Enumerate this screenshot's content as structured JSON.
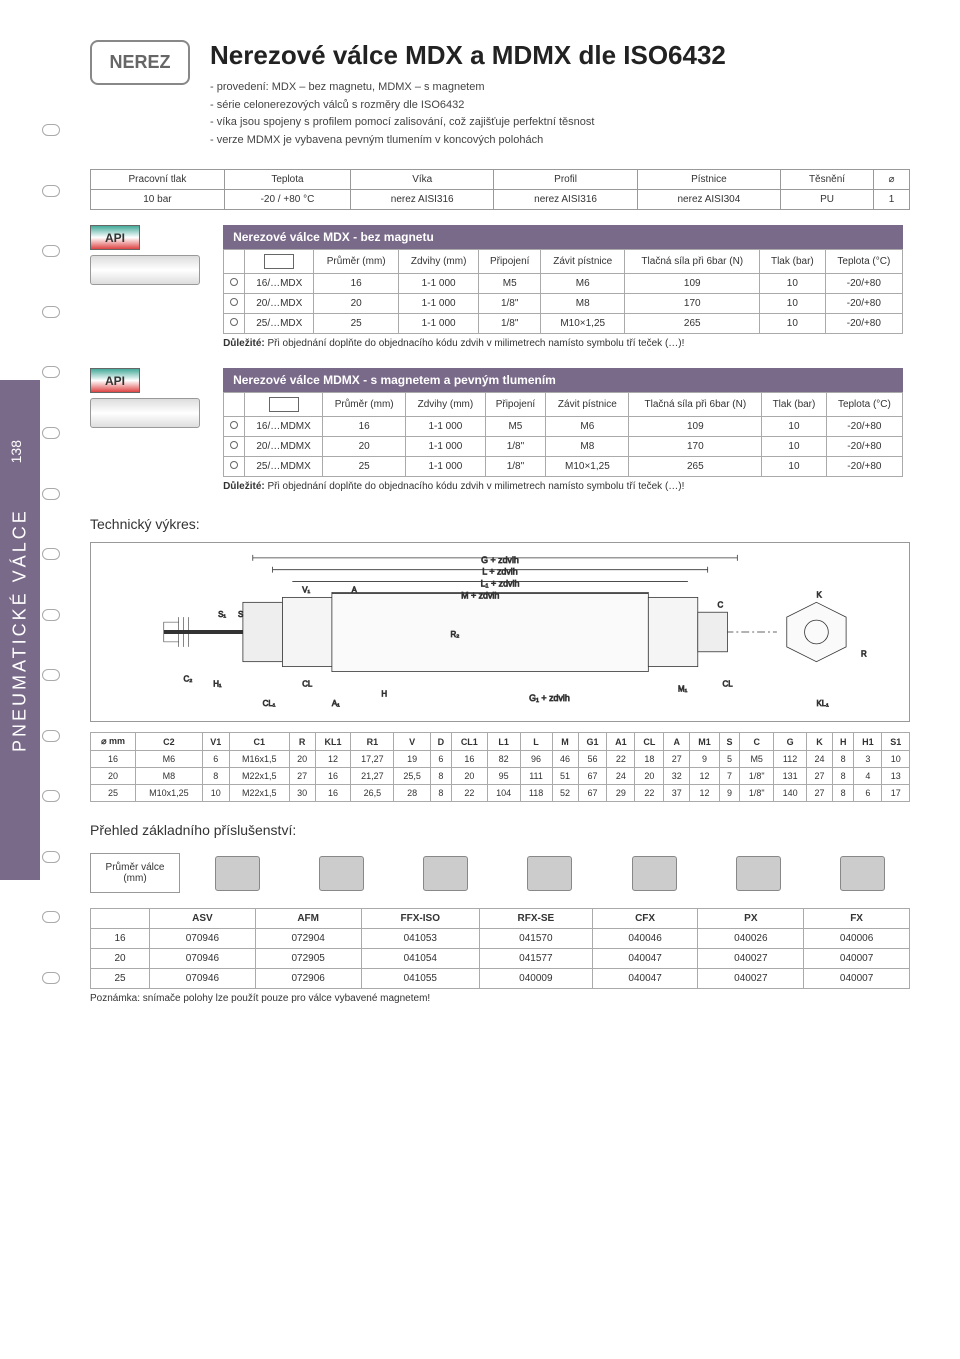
{
  "sideTab": "PNEUMATICKÉ VÁLCE",
  "pageNum": "138",
  "badge": "NEREZ",
  "title": "Nerezové válce MDX a MDMX dle ISO6432",
  "bullets": [
    "provedení: MDX – bez magnetu, MDMX – s magnetem",
    "série celonerezových válců s rozměry dle ISO6432",
    "víka jsou spojeny s profilem pomocí zalisování, což zajišťuje perfektní těsnost",
    "verze MDMX je vybavena pevným tlumením v koncových polohách"
  ],
  "specHeaders": [
    "Pracovní tlak",
    "Teplota",
    "Víka",
    "Profil",
    "Pístnice",
    "Těsnění",
    "⌀"
  ],
  "specRow": [
    "10 bar",
    "-20 / +80 °C",
    "nerez AISI316",
    "nerez AISI316",
    "nerez AISI304",
    "PU",
    "1"
  ],
  "table1": {
    "title": "Nerezové válce MDX - bez magnetu",
    "headers": [
      "",
      "",
      "Průměr (mm)",
      "Zdvihy (mm)",
      "Připojení",
      "Závit pístnice",
      "Tlačná síla při 6bar (N)",
      "Tlak (bar)",
      "Teplota (°C)"
    ],
    "rows": [
      [
        "○",
        "16/…MDX",
        "16",
        "1-1 000",
        "M5",
        "M6",
        "109",
        "10",
        "-20/+80"
      ],
      [
        "○",
        "20/…MDX",
        "20",
        "1-1 000",
        "1/8\"",
        "M8",
        "170",
        "10",
        "-20/+80"
      ],
      [
        "○",
        "25/…MDX",
        "25",
        "1-1 000",
        "1/8\"",
        "M10×1,25",
        "265",
        "10",
        "-20/+80"
      ]
    ],
    "note": "Důležité: Při objednání doplňte do objednacího kódu zdvih v milimetrech namísto symbolu tří teček (…)!"
  },
  "table2": {
    "title": "Nerezové válce MDMX - s magnetem a pevným tlumením",
    "headers": [
      "",
      "",
      "Průměr (mm)",
      "Zdvihy (mm)",
      "Připojení",
      "Závit pístnice",
      "Tlačná síla při 6bar (N)",
      "Tlak (bar)",
      "Teplota (°C)"
    ],
    "rows": [
      [
        "○",
        "16/…MDMX",
        "16",
        "1-1 000",
        "M5",
        "M6",
        "109",
        "10",
        "-20/+80"
      ],
      [
        "○",
        "20/…MDMX",
        "20",
        "1-1 000",
        "1/8\"",
        "M8",
        "170",
        "10",
        "-20/+80"
      ],
      [
        "○",
        "25/…MDMX",
        "25",
        "1-1 000",
        "1/8\"",
        "M10×1,25",
        "265",
        "10",
        "-20/+80"
      ]
    ],
    "note": "Důležité: Při objednání doplňte do objednacího kódu zdvih v milimetrech namísto symbolu tří teček (…)!"
  },
  "drawingTitle": "Technický výkres:",
  "drawingLabels": [
    "G + zdvih",
    "L + zdvih",
    "L₁ + zdvih",
    "M + zdvih",
    "G₁ + zdvih"
  ],
  "dimLabels": [
    "S₁",
    "S",
    "V₁",
    "A",
    "CL",
    "H₁",
    "CL₁",
    "A₁",
    "H",
    "M₁",
    "C",
    "CL",
    "K",
    "KL₁",
    "R",
    "C₂",
    "R₂"
  ],
  "dims": {
    "headers": [
      "⌀ mm",
      "C2",
      "V1",
      "C1",
      "R",
      "KL1",
      "R1",
      "V",
      "D",
      "CL1",
      "L1",
      "L",
      "M",
      "G1",
      "A1",
      "CL",
      "A",
      "M1",
      "S",
      "C",
      "G",
      "K",
      "H",
      "H1",
      "S1"
    ],
    "rows": [
      [
        "16",
        "M6",
        "6",
        "M16x1,5",
        "20",
        "12",
        "17,27",
        "19",
        "6",
        "16",
        "82",
        "96",
        "46",
        "56",
        "22",
        "18",
        "27",
        "9",
        "5",
        "M5",
        "112",
        "24",
        "8",
        "3",
        "10"
      ],
      [
        "20",
        "M8",
        "8",
        "M22x1,5",
        "27",
        "16",
        "21,27",
        "25,5",
        "8",
        "20",
        "95",
        "111",
        "51",
        "67",
        "24",
        "20",
        "32",
        "12",
        "7",
        "1/8\"",
        "131",
        "27",
        "8",
        "4",
        "13"
      ],
      [
        "25",
        "M10x1,25",
        "10",
        "M22x1,5",
        "30",
        "16",
        "26,5",
        "28",
        "8",
        "22",
        "104",
        "118",
        "52",
        "67",
        "29",
        "22",
        "37",
        "12",
        "9",
        "1/8\"",
        "140",
        "27",
        "8",
        "6",
        "17"
      ]
    ]
  },
  "accTitle": "Přehled základního příslušenství:",
  "accBox": "Průměr válce (mm)",
  "accHeaders": [
    "",
    "ASV",
    "AFM",
    "FFX-ISO",
    "RFX-SE",
    "CFX",
    "PX",
    "FX"
  ],
  "accRows": [
    [
      "16",
      "070946",
      "072904",
      "041053",
      "041570",
      "040046",
      "040026",
      "040006"
    ],
    [
      "20",
      "070946",
      "072905",
      "041054",
      "041577",
      "040047",
      "040027",
      "040007"
    ],
    [
      "25",
      "070946",
      "072906",
      "041055",
      "040009",
      "040047",
      "040027",
      "040007"
    ]
  ],
  "accNote": "Poznámka: snímače polohy lze použít pouze pro válce vybavené magnetem!"
}
